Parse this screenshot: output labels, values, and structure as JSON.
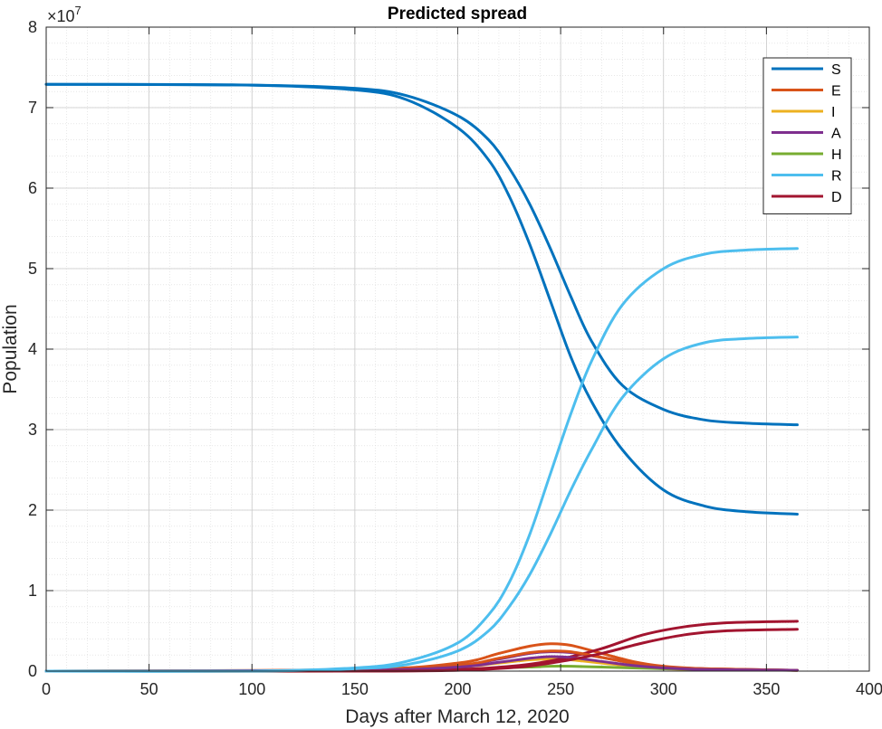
{
  "chart_data": {
    "type": "line",
    "title": "Predicted spread",
    "xlabel": "Days after March 12, 2020",
    "ylabel": "Population",
    "exponent_label": "×10",
    "exponent_power": "7",
    "xlim": [
      0,
      400
    ],
    "ylim": [
      0,
      8
    ],
    "xticks": [
      "0",
      "50",
      "100",
      "150",
      "200",
      "250",
      "300",
      "350",
      "400"
    ],
    "yticks": [
      "0",
      "1",
      "2",
      "3",
      "4",
      "5",
      "6",
      "7",
      "8"
    ],
    "grid": true,
    "minor_grid": true,
    "legend_position": "top-right",
    "y_units_note": "y values in units of 10^7",
    "series": [
      {
        "name": "S",
        "color": "#0072BD",
        "visible_in_legend": true,
        "x": [
          0,
          100,
          150,
          175,
          200,
          215,
          225,
          235,
          245,
          255,
          265,
          280,
          300,
          320,
          340,
          365
        ],
        "y": [
          7.29,
          7.28,
          7.22,
          7.1,
          6.75,
          6.35,
          5.9,
          5.3,
          4.6,
          3.9,
          3.35,
          2.75,
          2.25,
          2.05,
          1.98,
          1.95
        ]
      },
      {
        "name": "",
        "color": "#0072BD",
        "visible_in_legend": false,
        "x": [
          0,
          100,
          150,
          175,
          200,
          215,
          225,
          235,
          245,
          255,
          265,
          280,
          300,
          320,
          340,
          365
        ],
        "y": [
          7.29,
          7.28,
          7.24,
          7.15,
          6.9,
          6.6,
          6.25,
          5.8,
          5.25,
          4.65,
          4.1,
          3.55,
          3.25,
          3.12,
          3.08,
          3.06
        ]
      },
      {
        "name": "E",
        "color": "#D95319",
        "visible_in_legend": true,
        "x": [
          0,
          150,
          200,
          220,
          235,
          245,
          255,
          270,
          285,
          300,
          320,
          365
        ],
        "y": [
          0,
          0.02,
          0.1,
          0.22,
          0.31,
          0.34,
          0.32,
          0.22,
          0.12,
          0.06,
          0.03,
          0.01
        ]
      },
      {
        "name": "I",
        "color": "#EDB120",
        "visible_in_legend": true,
        "x": [
          0,
          150,
          200,
          220,
          235,
          245,
          255,
          270,
          285,
          300,
          320,
          365
        ],
        "y": [
          0,
          0.01,
          0.05,
          0.1,
          0.14,
          0.15,
          0.14,
          0.1,
          0.06,
          0.03,
          0.02,
          0.01
        ]
      },
      {
        "name": "A",
        "color": "#7E2F8E",
        "visible_in_legend": true,
        "x": [
          0,
          150,
          200,
          220,
          235,
          245,
          255,
          270,
          285,
          300,
          320,
          365
        ],
        "y": [
          0,
          0.01,
          0.07,
          0.15,
          0.22,
          0.24,
          0.23,
          0.17,
          0.1,
          0.05,
          0.03,
          0.01
        ]
      },
      {
        "name": "H",
        "color": "#77AC30",
        "visible_in_legend": true,
        "x": [
          0,
          150,
          200,
          220,
          235,
          245,
          255,
          270,
          285,
          300,
          320,
          365
        ],
        "y": [
          0,
          0.0,
          0.02,
          0.04,
          0.05,
          0.06,
          0.06,
          0.05,
          0.04,
          0.03,
          0.02,
          0.01
        ]
      },
      {
        "name": "R",
        "color": "#4DBEEE",
        "visible_in_legend": true,
        "x": [
          0,
          100,
          150,
          175,
          200,
          215,
          225,
          235,
          245,
          255,
          265,
          280,
          300,
          320,
          340,
          365
        ],
        "y": [
          0,
          0.0,
          0.04,
          0.12,
          0.35,
          0.7,
          1.1,
          1.7,
          2.45,
          3.2,
          3.85,
          4.55,
          5.0,
          5.18,
          5.23,
          5.25
        ]
      },
      {
        "name": "",
        "color": "#4DBEEE",
        "visible_in_legend": false,
        "x": [
          0,
          100,
          150,
          175,
          200,
          215,
          225,
          235,
          245,
          255,
          265,
          280,
          300,
          320,
          340,
          365
        ],
        "y": [
          0,
          0.0,
          0.03,
          0.08,
          0.25,
          0.5,
          0.8,
          1.2,
          1.7,
          2.25,
          2.75,
          3.4,
          3.88,
          4.08,
          4.13,
          4.15
        ]
      },
      {
        "name": "D",
        "color": "#A2142F",
        "visible_in_legend": true,
        "x": [
          0,
          150,
          200,
          230,
          250,
          270,
          290,
          310,
          330,
          365
        ],
        "y": [
          0,
          0.0,
          0.02,
          0.07,
          0.15,
          0.28,
          0.45,
          0.55,
          0.6,
          0.62
        ]
      },
      {
        "name": "",
        "color": "#D95319",
        "visible_in_legend": false,
        "x": [
          0,
          150,
          200,
          220,
          235,
          245,
          255,
          270,
          285,
          300,
          320,
          365
        ],
        "y": [
          0,
          0.01,
          0.07,
          0.16,
          0.23,
          0.25,
          0.24,
          0.17,
          0.1,
          0.05,
          0.03,
          0.01
        ]
      },
      {
        "name": "",
        "color": "#7E2F8E",
        "visible_in_legend": false,
        "x": [
          0,
          150,
          200,
          220,
          235,
          245,
          255,
          270,
          285,
          300,
          320,
          365
        ],
        "y": [
          0,
          0.01,
          0.05,
          0.11,
          0.16,
          0.18,
          0.17,
          0.12,
          0.07,
          0.04,
          0.02,
          0.01
        ]
      },
      {
        "name": "",
        "color": "#A2142F",
        "visible_in_legend": false,
        "x": [
          0,
          150,
          200,
          230,
          250,
          270,
          290,
          310,
          330,
          365
        ],
        "y": [
          0,
          0.0,
          0.01,
          0.05,
          0.12,
          0.22,
          0.35,
          0.45,
          0.5,
          0.52
        ]
      }
    ]
  }
}
